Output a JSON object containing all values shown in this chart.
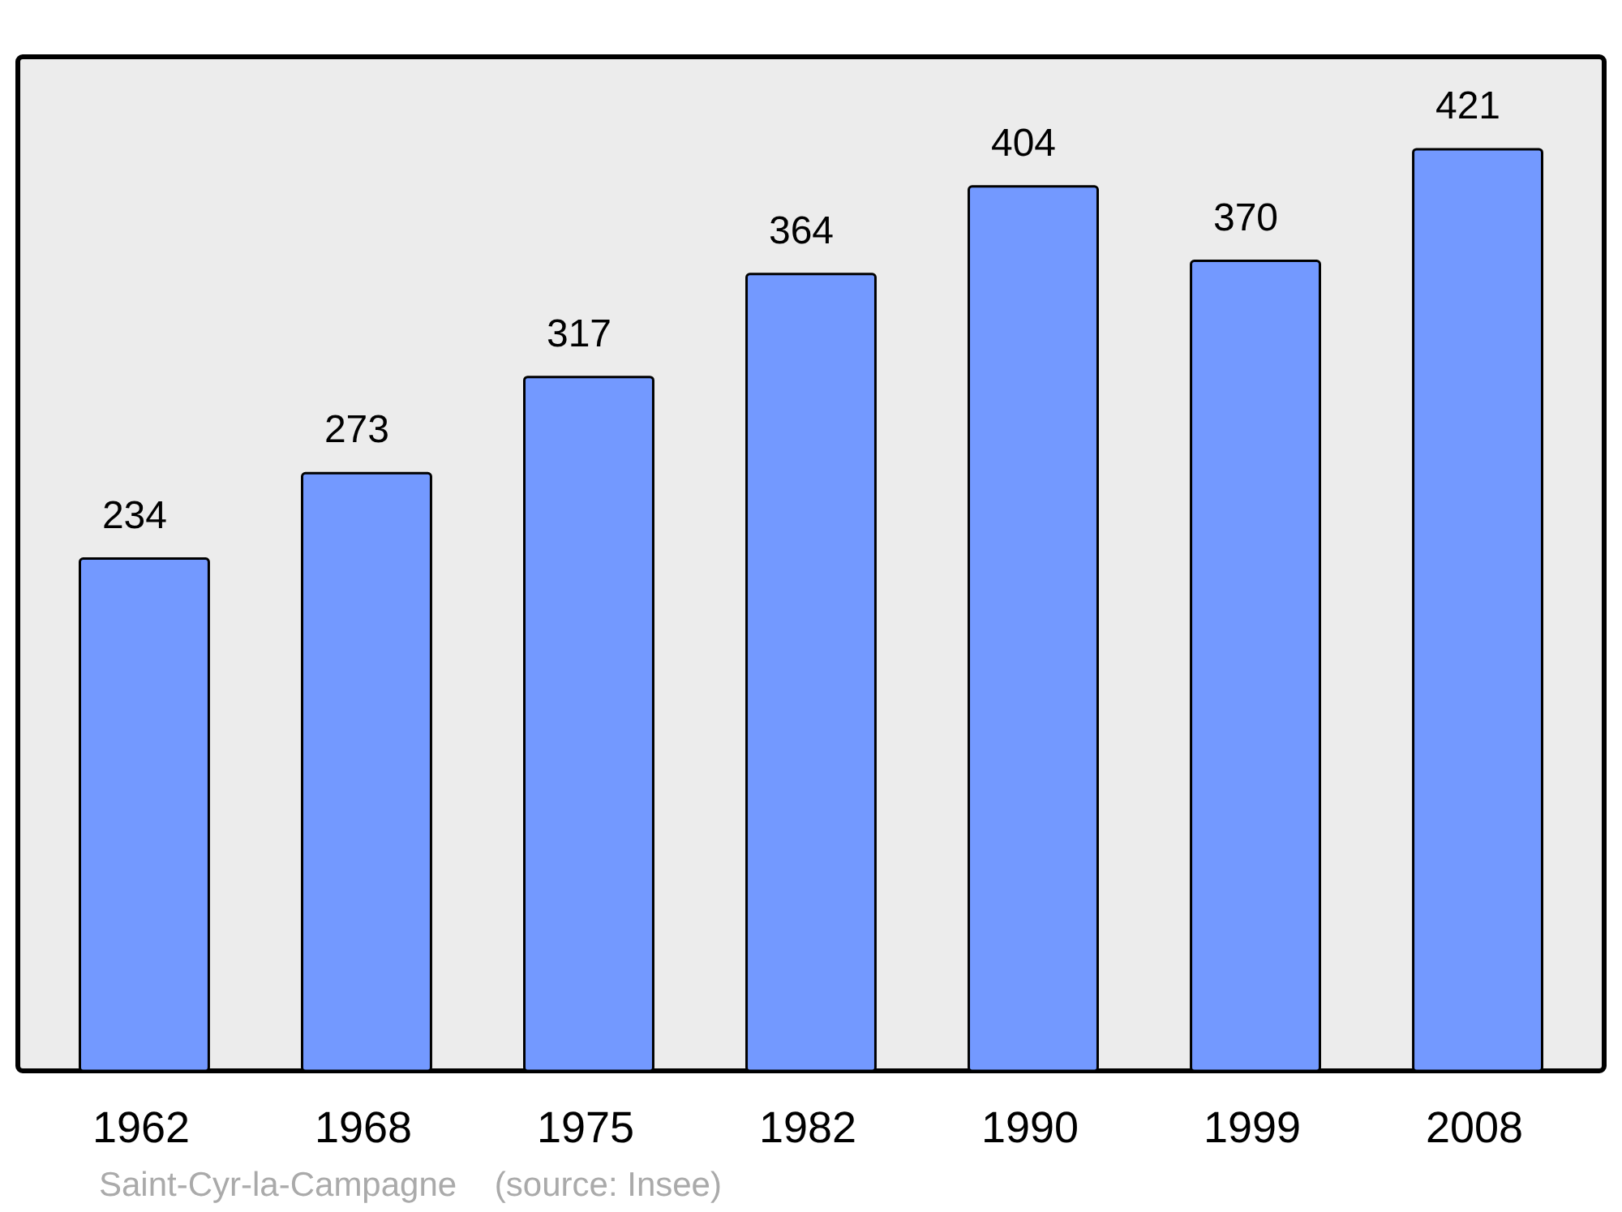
{
  "chart_data": {
    "type": "bar",
    "categories": [
      "1962",
      "1968",
      "1975",
      "1982",
      "1990",
      "1999",
      "2008"
    ],
    "values": [
      234,
      273,
      317,
      364,
      404,
      370,
      421
    ],
    "color": "#7399ff",
    "data_labels": true,
    "annotations": [
      "Saint-Cyr-la-Campagne    (source: Insee)"
    ]
  }
}
